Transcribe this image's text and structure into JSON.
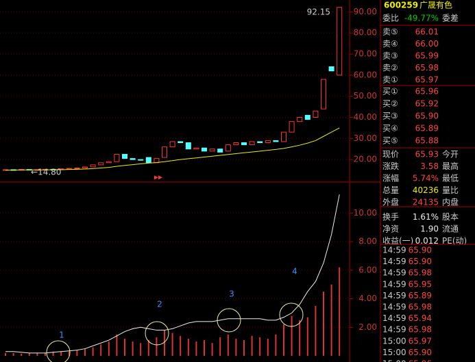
{
  "chart_data": [
    {
      "type": "candlestick",
      "opens": [
        15.0,
        15.2,
        15.1,
        15.3,
        15.0,
        15.2,
        15.4,
        15.3,
        15.6,
        15.8,
        16.0,
        16.5,
        17.5,
        18.5,
        19.0,
        22.5,
        20.5,
        20.0,
        21.0,
        18.5,
        21.0,
        26.0,
        28.5,
        28.0,
        25.0,
        25.5,
        24.0,
        25.0,
        24.0,
        27.0,
        28.0,
        27.0,
        28.5,
        28.0,
        29.0,
        28.5,
        33.0,
        38.0,
        41.0,
        40.0,
        44.0,
        64.0,
        60.0
      ],
      "closes": [
        15.2,
        15.1,
        15.3,
        15.0,
        15.2,
        15.4,
        15.3,
        15.6,
        15.8,
        16.0,
        16.5,
        17.5,
        18.5,
        19.0,
        22.5,
        20.5,
        20.0,
        19.8,
        18.5,
        20.5,
        26.0,
        28.5,
        28.0,
        25.0,
        25.5,
        24.0,
        25.0,
        23.5,
        27.0,
        28.0,
        27.0,
        28.5,
        28.0,
        29.0,
        28.5,
        33.0,
        38.0,
        40.0,
        39.0,
        43.0,
        58.0,
        62.0,
        92.15
      ],
      "ma": [
        15.0,
        15.0,
        15.1,
        15.1,
        15.1,
        15.1,
        15.2,
        15.2,
        15.3,
        15.4,
        15.5,
        15.7,
        16.0,
        16.3,
        16.8,
        17.2,
        17.6,
        18.0,
        18.3,
        18.6,
        19.0,
        19.5,
        20.0,
        20.4,
        20.8,
        21.2,
        21.6,
        22.0,
        22.4,
        22.8,
        23.2,
        23.6,
        24.0,
        24.4,
        24.8,
        25.3,
        26.0,
        26.8,
        27.8,
        29.0,
        31.0,
        33.0,
        35.0
      ],
      "ylim": [
        10,
        94
      ],
      "yticks": [
        {
          "value": 20,
          "label": "20.00"
        },
        {
          "value": 30,
          "label": "30.00"
        },
        {
          "value": 40,
          "label": "40.00"
        },
        {
          "value": 50,
          "label": "50.00"
        },
        {
          "value": 60,
          "label": "60.00"
        },
        {
          "value": 70,
          "label": "70.00"
        },
        {
          "value": 80,
          "label": "80.00"
        },
        {
          "value": 90,
          "label": "90.00"
        }
      ],
      "annotations": [
        "92.15",
        "←14.80"
      ]
    },
    {
      "type": "bar",
      "values": [
        0.2,
        0.2,
        0.15,
        0.2,
        0.2,
        0.2,
        0.3,
        0.3,
        0.3,
        0.4,
        0.5,
        0.6,
        0.8,
        1,
        1.5,
        1.2,
        1,
        0.9,
        1.1,
        1.3,
        1.8,
        1.6,
        1.4,
        1.2,
        1.0,
        1.1,
        0.9,
        1.3,
        1.5,
        1.2,
        1.1,
        1.4,
        1.3,
        1.2,
        1.5,
        2.2,
        2.8,
        2.5,
        2.7,
        3.5,
        4.5,
        5.0,
        6.2
      ],
      "line": [
        0.3,
        0.3,
        0.25,
        0.2,
        0.2,
        0.2,
        0.25,
        0.3,
        0.35,
        0.4,
        0.5,
        0.7,
        0.9,
        1.1,
        1.4,
        1.7,
        1.9,
        2.0,
        1.9,
        1.8,
        1.8,
        1.9,
        2.1,
        2.3,
        2.4,
        2.4,
        2.4,
        2.5,
        2.6,
        2.6,
        2.6,
        2.6,
        2.6,
        2.5,
        2.5,
        2.7,
        3.0,
        3.6,
        4.5,
        5.2,
        6.5,
        8.5,
        11.3
      ],
      "ylim": [
        0,
        11.5
      ],
      "yticks": [
        {
          "value": 2,
          "label": "2.00"
        },
        {
          "value": 4,
          "label": "4.00"
        },
        {
          "value": 6,
          "label": "6.00"
        },
        {
          "value": 8,
          "label": "8.00"
        },
        {
          "value": 10,
          "label": "10.00"
        }
      ],
      "annotations": [
        "1",
        "2",
        "3",
        "4"
      ]
    }
  ],
  "quote_panel": {
    "code": "600259",
    "name": "广晟有色",
    "ratio": [
      "委比",
      "-49.77%",
      "委差"
    ],
    "sells": [
      [
        "卖⑤",
        "66.01"
      ],
      [
        "卖④",
        "66.00"
      ],
      [
        "卖③",
        "65.99"
      ],
      [
        "卖②",
        "65.98"
      ],
      [
        "卖①",
        "65.97"
      ]
    ],
    "buys": [
      [
        "买①",
        "65.96"
      ],
      [
        "买②",
        "65.92"
      ],
      [
        "买③",
        "65.90"
      ],
      [
        "买④",
        "65.89"
      ],
      [
        "买⑤",
        "65.88"
      ]
    ],
    "stats": [
      [
        "现价",
        "65.93",
        "今开"
      ],
      [
        "涨跌",
        "3.58",
        "最高"
      ],
      [
        "涨幅",
        "5.74%",
        "最低"
      ],
      [
        "总量",
        "40236",
        "量比"
      ],
      [
        "外盘",
        "24135",
        "内盘"
      ],
      [
        "换手",
        "1.61%",
        "股本"
      ],
      [
        "净资",
        "1.90",
        "流通"
      ],
      [
        "收益(一)",
        "0.012",
        "PE(动)"
      ]
    ],
    "trades": [
      [
        "14:59",
        "65.90"
      ],
      [
        "14:59",
        "65.90"
      ],
      [
        "14:59",
        "65.98"
      ],
      [
        "14:59",
        "65.95"
      ],
      [
        "14:59",
        "65.89"
      ],
      [
        "14:59",
        "65.98"
      ],
      [
        "14:59",
        "65.94"
      ],
      [
        "14:59",
        "65.98"
      ],
      [
        "15:00",
        "65.97"
      ],
      [
        "15:00",
        "65.90"
      ],
      [
        "15:00",
        "65.96"
      ]
    ]
  }
}
